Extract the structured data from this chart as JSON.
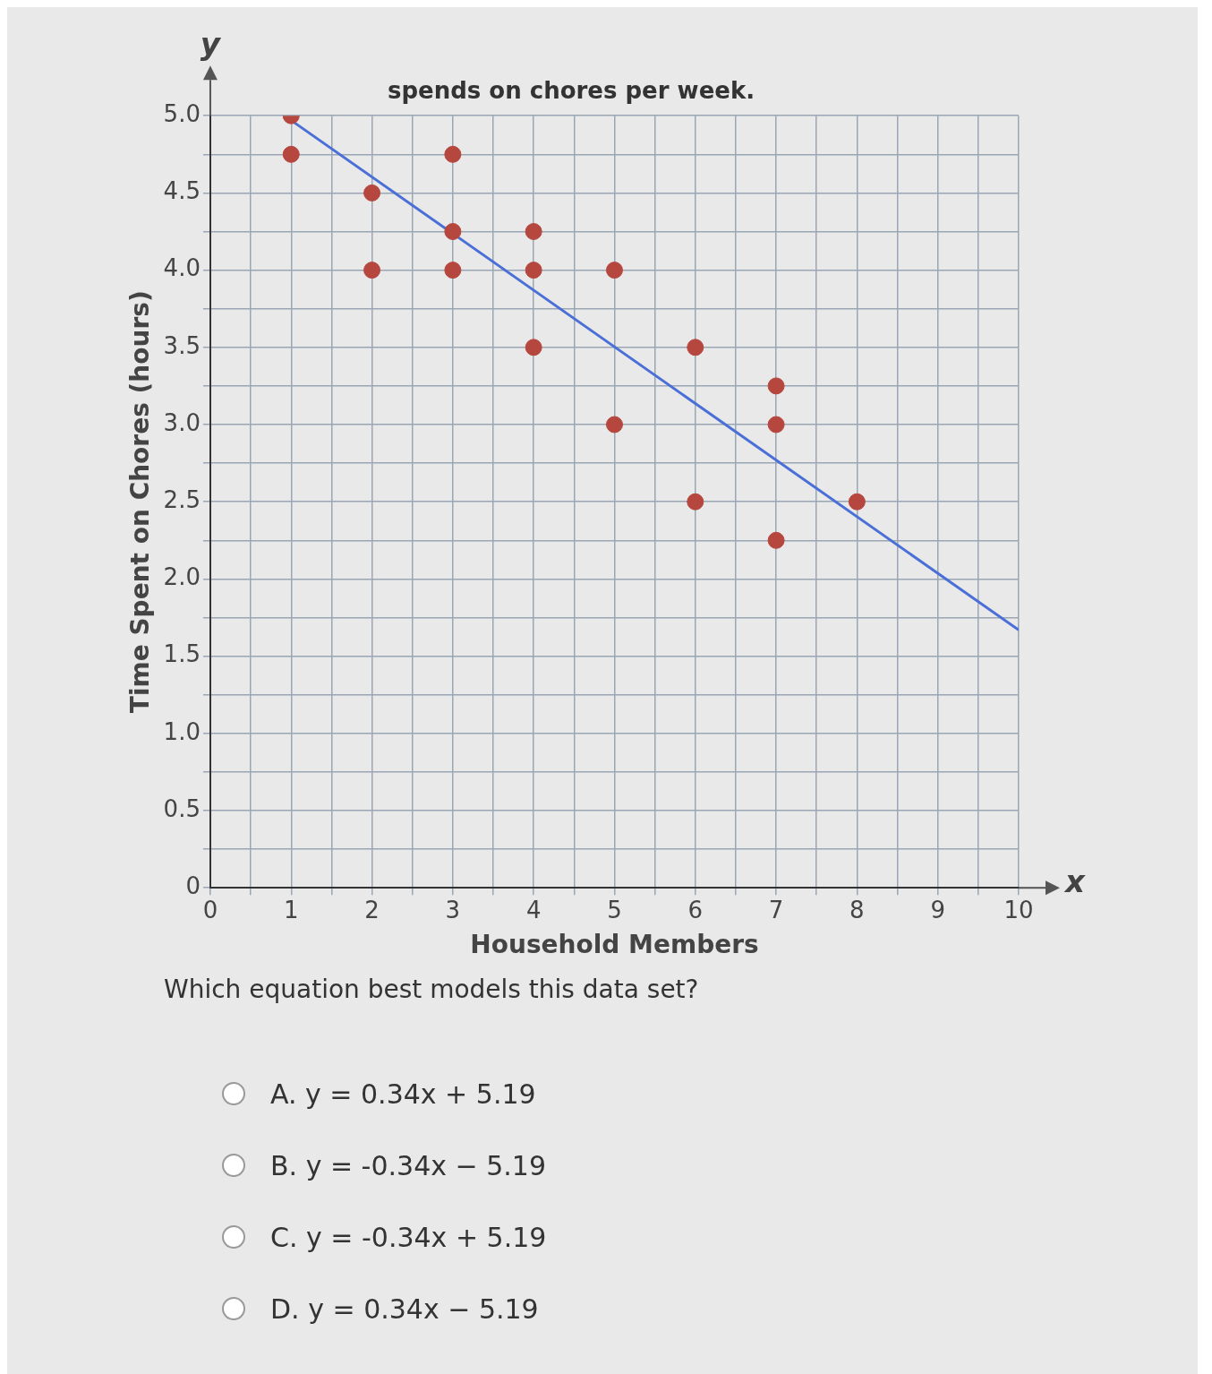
{
  "chart_data": {
    "type": "scatter",
    "title": "spends on chores per week.",
    "xlabel": "Household Members",
    "ylabel": "Time Spent on Chores (hours)",
    "annotations": [
      "y",
      "x",
      "Which equation best models this data set?",
      "A.   y = 0.34x + 5.19",
      "B.   y = -0.34x − 5.19",
      "C.   y = -0.34x + 5.19",
      "D.   y = 0.34x − 5.19"
    ],
    "series": [
      {
        "type": "scatter",
        "color": "#b5473f",
        "marker": "circle",
        "x": [
          1,
          1,
          2,
          2,
          3,
          3,
          3,
          4,
          4,
          4,
          5,
          5,
          6,
          6,
          7,
          7,
          7,
          8
        ],
        "values": [
          5.0,
          4.75,
          4.5,
          4.0,
          4.75,
          4.25,
          4.0,
          4.25,
          4.0,
          3.5,
          4.0,
          3.0,
          3.5,
          2.5,
          3.25,
          3.0,
          2.25,
          2.5
        ]
      },
      {
        "type": "line",
        "color": "#4a6fd6",
        "marker": "none",
        "line_style": "solid",
        "x": [
          1,
          10
        ],
        "values": [
          4.97,
          1.67
        ]
      }
    ],
    "xlim": [
      0,
      10
    ],
    "ylim": [
      0,
      5
    ],
    "xticks": [
      0,
      {
        "value": 0.5,
        "label": null
      },
      1,
      {
        "value": 1.5,
        "label": null
      },
      2,
      {
        "value": 2.5,
        "label": null
      },
      3,
      {
        "value": 3.5,
        "label": null
      },
      4,
      {
        "value": 4.5,
        "label": null
      },
      5,
      {
        "value": 5.5,
        "label": null
      },
      6,
      {
        "value": 6.5,
        "label": null
      },
      7,
      {
        "value": 7.5,
        "label": null
      },
      8,
      {
        "value": 8.5,
        "label": null
      },
      9,
      {
        "value": 9.5,
        "label": null
      },
      10
    ],
    "yticks": [
      0,
      {
        "value": 0.25,
        "label": null
      },
      0.5,
      {
        "value": 0.75,
        "label": null
      },
      {
        "value": 1,
        "label": "1.0"
      },
      {
        "value": 1.25,
        "label": null
      },
      1.5,
      {
        "value": 1.75,
        "label": null
      },
      {
        "value": 2,
        "label": "2.0"
      },
      {
        "value": 2.25,
        "label": null
      },
      2.5,
      {
        "value": 2.75,
        "label": null
      },
      {
        "value": 3,
        "label": "3.0"
      },
      {
        "value": 3.25,
        "label": null
      },
      3.5,
      {
        "value": 3.75,
        "label": null
      },
      {
        "value": 4,
        "label": "4.0"
      },
      {
        "value": 4.25,
        "label": null
      },
      4.5,
      {
        "value": 4.75,
        "label": null
      },
      {
        "value": 5,
        "label": "5.0"
      }
    ],
    "grid": true,
    "legend": false
  }
}
